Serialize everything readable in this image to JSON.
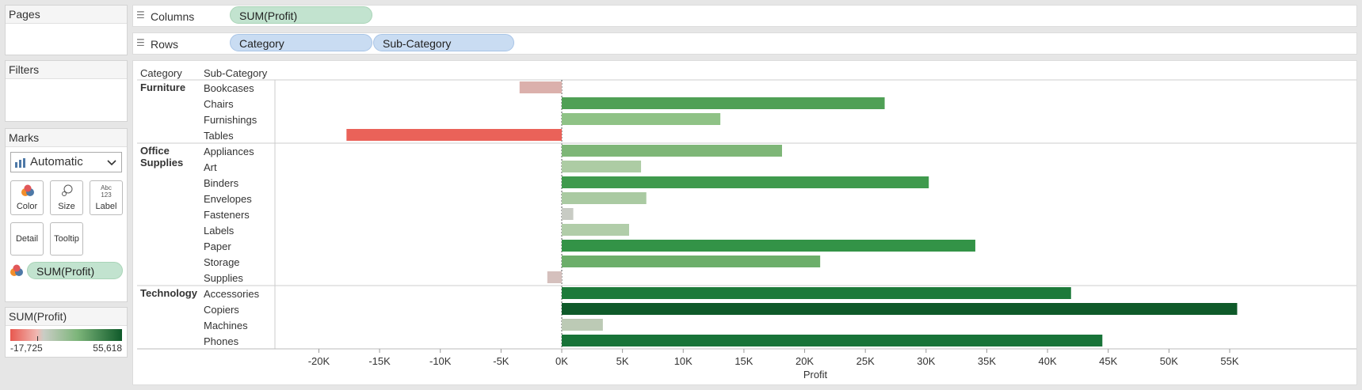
{
  "pages_card": {
    "title": "Pages"
  },
  "filters_card": {
    "title": "Filters"
  },
  "marks_card": {
    "title": "Marks",
    "mark_type": "Automatic",
    "buttons": {
      "color": "Color",
      "size": "Size",
      "label": "Label",
      "detail": "Detail",
      "tooltip": "Tooltip"
    },
    "label_icon_text": [
      "Abc",
      "123"
    ],
    "color_field": "SUM(Profit)"
  },
  "legend": {
    "title": "SUM(Profit)",
    "min": "-17,725",
    "max": "55,618",
    "colors": [
      "#e8584f",
      "#f0b8b2",
      "#c9cdc5",
      "#7db57a",
      "#0f5a2a"
    ]
  },
  "shelves": {
    "columns": {
      "label": "Columns",
      "pills": [
        "SUM(Profit)"
      ]
    },
    "rows": {
      "label": "Rows",
      "pills": [
        "Category",
        "Sub-Category"
      ]
    }
  },
  "view": {
    "header_category": "Category",
    "header_subcategory": "Sub-Category"
  },
  "chart_data": {
    "type": "bar",
    "orientation": "horizontal",
    "xlabel": "Profit",
    "xlim": [
      -21500,
      58500
    ],
    "x_ticks": [
      -20000,
      -15000,
      -10000,
      -5000,
      0,
      5000,
      10000,
      15000,
      20000,
      25000,
      30000,
      35000,
      40000,
      45000,
      50000,
      55000
    ],
    "x_tick_labels": [
      "-20K",
      "-15K",
      "-10K",
      "-5K",
      "0K",
      "5K",
      "10K",
      "15K",
      "20K",
      "25K",
      "30K",
      "35K",
      "40K",
      "45K",
      "50K",
      "55K"
    ],
    "color_scale": {
      "min": -17725,
      "max": 55618
    },
    "groups": [
      {
        "category": "Furniture",
        "items": [
          {
            "name": "Bookcases",
            "value": -3473,
            "color": "#dbb0ac"
          },
          {
            "name": "Chairs",
            "value": 26590,
            "color": "#4fa055"
          },
          {
            "name": "Furnishings",
            "value": 13059,
            "color": "#8fc286"
          },
          {
            "name": "Tables",
            "value": -17725,
            "color": "#ea6259"
          }
        ]
      },
      {
        "category": "Office Supplies",
        "items": [
          {
            "name": "Appliances",
            "value": 18138,
            "color": "#7eb677"
          },
          {
            "name": "Art",
            "value": 6528,
            "color": "#adcca4"
          },
          {
            "name": "Binders",
            "value": 30222,
            "color": "#3f9a4d"
          },
          {
            "name": "Envelopes",
            "value": 6964,
            "color": "#aacaa2"
          },
          {
            "name": "Fasteners",
            "value": 950,
            "color": "#c8cbc4"
          },
          {
            "name": "Labels",
            "value": 5546,
            "color": "#b1cda9"
          },
          {
            "name": "Paper",
            "value": 34054,
            "color": "#339347"
          },
          {
            "name": "Storage",
            "value": 21279,
            "color": "#6cae6a"
          },
          {
            "name": "Supplies",
            "value": -1189,
            "color": "#d5c0bd"
          }
        ]
      },
      {
        "category": "Technology",
        "items": [
          {
            "name": "Accessories",
            "value": 41937,
            "color": "#1d7a3a"
          },
          {
            "name": "Copiers",
            "value": 55618,
            "color": "#0f5a2a"
          },
          {
            "name": "Machines",
            "value": 3385,
            "color": "#bccab5"
          },
          {
            "name": "Phones",
            "value": 44516,
            "color": "#187338"
          }
        ]
      }
    ]
  }
}
